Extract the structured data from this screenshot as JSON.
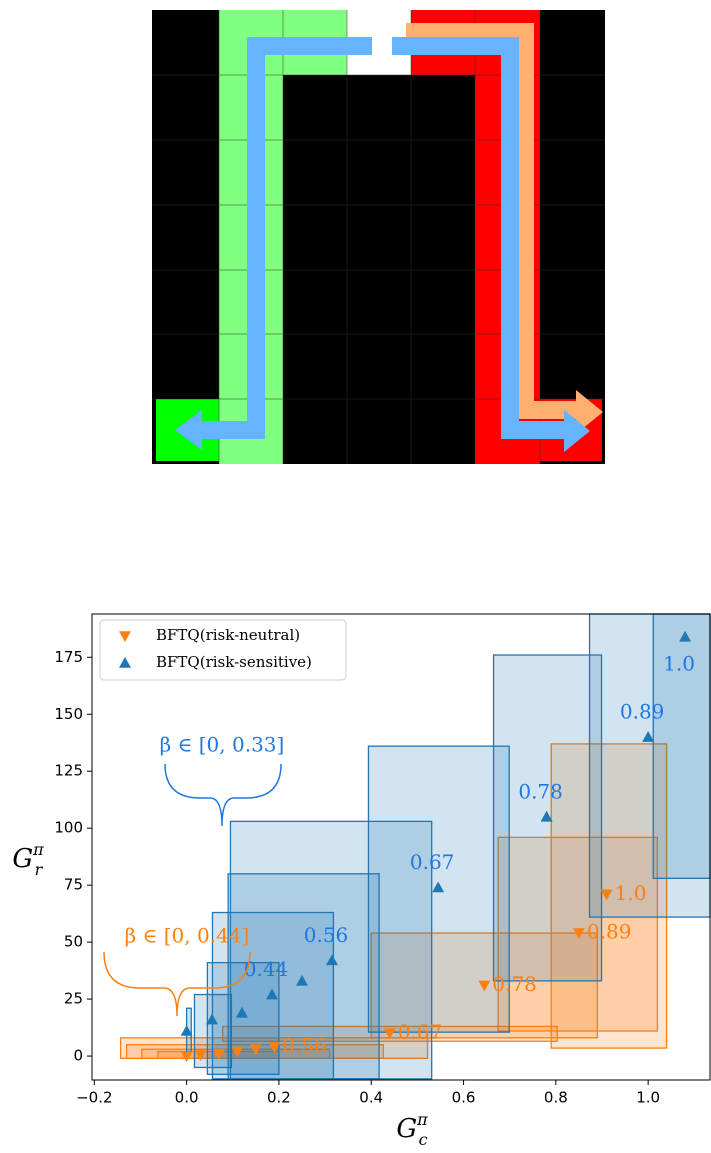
{
  "chart_data": {
    "type": "scatter",
    "xlabel": {
      "symbol": "G",
      "superscript": "π",
      "subscript": "c"
    },
    "ylabel": {
      "symbol": "G",
      "superscript": "π",
      "subscript": "r"
    },
    "xlim": [
      -0.205,
      1.134
    ],
    "ylim": [
      -10.5,
      194
    ],
    "xticks": [
      {
        "value": -0.2,
        "label": "−0.2"
      },
      {
        "value": 0,
        "label": "0.0"
      },
      0.2,
      0.4,
      0.6,
      0.8,
      {
        "value": 1,
        "label": "1.0"
      }
    ],
    "yticks": [
      0,
      25,
      50,
      75,
      100,
      125,
      150,
      175
    ],
    "legend": "upper left",
    "annotations": [
      "β ∈ [0, 0.33]",
      "β ∈ [0, 0.44]"
    ],
    "series": [
      {
        "name": "BFTQ(risk-neutral)",
        "color": "#ff7f0e",
        "marker": "down",
        "x": [
          0.0,
          0.03,
          0.07,
          0.11,
          0.15,
          0.19,
          0.44,
          0.645,
          0.85,
          0.91
        ],
        "values": [
          0,
          0.5,
          1,
          2,
          3,
          4,
          10,
          31,
          54,
          71
        ],
        "point_labels": [
          null,
          null,
          null,
          null,
          null,
          "0.56",
          "0.67",
          "0.78",
          "0.89",
          "1.0"
        ],
        "boxes": [
          [
            -0.143,
            0.522,
            -1,
            8
          ],
          [
            -0.13,
            0.426,
            -1,
            5
          ],
          [
            -0.097,
            0.31,
            -1,
            3
          ],
          [
            -0.062,
            0.2,
            -1,
            2
          ],
          [
            0.078,
            0.803,
            6.5,
            13
          ],
          [
            0.4,
            0.89,
            8,
            54
          ],
          [
            0.675,
            1.02,
            11,
            96
          ],
          [
            0.79,
            1.04,
            3.5,
            137
          ]
        ]
      },
      {
        "name": "BFTQ(risk-sensitive)",
        "color": "#1f77b4",
        "marker": "up",
        "x": [
          0.0,
          0.055,
          0.12,
          0.185,
          0.25,
          0.315,
          0.545,
          0.78,
          1.0,
          1.08
        ],
        "values": [
          11,
          16,
          19,
          27,
          33,
          42,
          74,
          105,
          140,
          184
        ],
        "point_labels": [
          null,
          null,
          null,
          "0.44",
          null,
          "0.56",
          "0.67",
          "0.78",
          "0.89",
          "1.0"
        ],
        "boxes": [
          [
            0.0,
            0.01,
            2,
            21
          ],
          [
            0.017,
            0.097,
            -5,
            27
          ],
          [
            0.045,
            0.2,
            -8,
            41
          ],
          [
            0.056,
            0.318,
            -10,
            63
          ],
          [
            0.09,
            0.417,
            -10,
            80
          ],
          [
            0.095,
            0.531,
            -10,
            103
          ],
          [
            0.394,
            0.699,
            10.5,
            136
          ],
          [
            0.665,
            0.899,
            33,
            176
          ],
          [
            0.873,
            1.134,
            61,
            194
          ],
          [
            1.011,
            1.134,
            78,
            194
          ]
        ]
      }
    ]
  }
}
